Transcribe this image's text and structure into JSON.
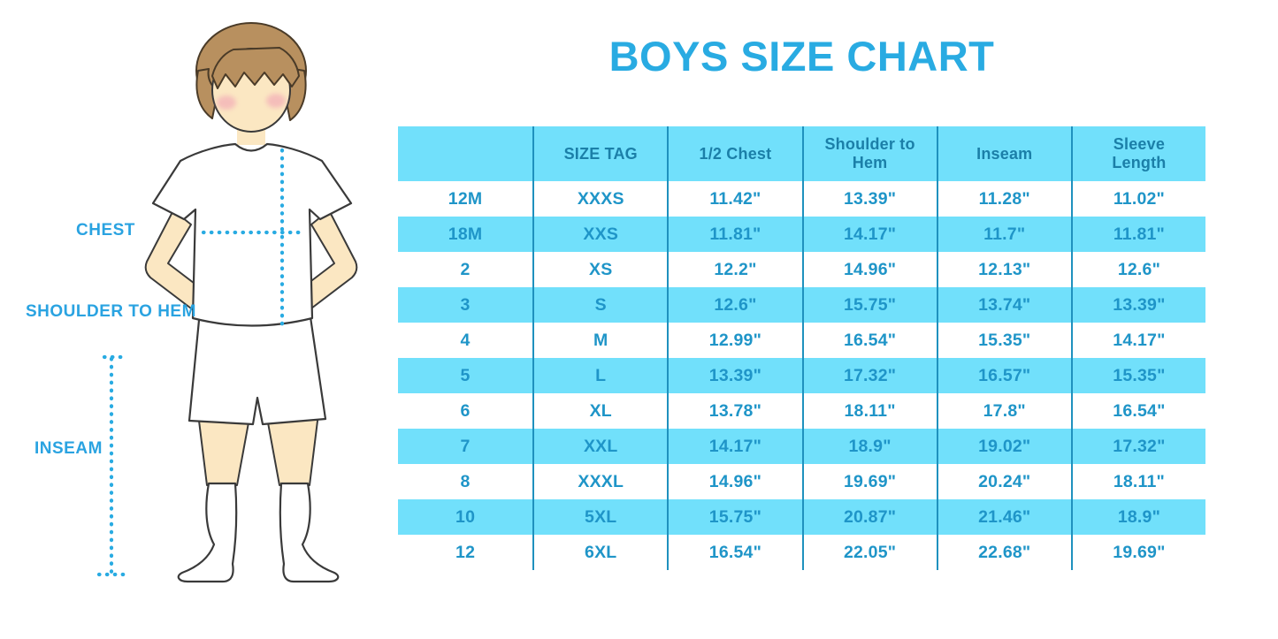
{
  "title": "BOYS SIZE CHART",
  "figure": {
    "illustration": "boy-in-white-tshirt-shorts-and-knee-socks",
    "labels": {
      "chest": "CHEST",
      "shoulder_to_hem": "SHOULDER TO HEM",
      "inseam": "INSEAM"
    }
  },
  "table": {
    "headers": [
      "",
      "SIZE TAG",
      "1/2 Chest",
      "Shoulder to Hem",
      "Inseam",
      "Sleeve Length"
    ],
    "rows": [
      [
        "12M",
        "XXXS",
        "11.42\"",
        "13.39\"",
        "11.28\"",
        "11.02\""
      ],
      [
        "18M",
        "XXS",
        "11.81\"",
        "14.17\"",
        "11.7\"",
        "11.81\""
      ],
      [
        "2",
        "XS",
        "12.2\"",
        "14.96\"",
        "12.13\"",
        "12.6\""
      ],
      [
        "3",
        "S",
        "12.6\"",
        "15.75\"",
        "13.74\"",
        "13.39\""
      ],
      [
        "4",
        "M",
        "12.99\"",
        "16.54\"",
        "15.35\"",
        "14.17\""
      ],
      [
        "5",
        "L",
        "13.39\"",
        "17.32\"",
        "16.57\"",
        "15.35\""
      ],
      [
        "6",
        "XL",
        "13.78\"",
        "18.11\"",
        "17.8\"",
        "16.54\""
      ],
      [
        "7",
        "XXL",
        "14.17\"",
        "18.9\"",
        "19.02\"",
        "17.32\""
      ],
      [
        "8",
        "XXXL",
        "14.96\"",
        "19.69\"",
        "20.24\"",
        "18.11\""
      ],
      [
        "10",
        "5XL",
        "15.75\"",
        "20.87\"",
        "21.46\"",
        "18.9\""
      ],
      [
        "12",
        "6XL",
        "16.54\"",
        "22.05\"",
        "22.68\"",
        "19.69\""
      ]
    ]
  },
  "colors": {
    "title_blue": "#29ABE2",
    "label_blue": "#2AA3E1",
    "dotted_line": "#29ABE2",
    "table_fill_cyan": "#71E0FB",
    "table_divider": "#1F91BE",
    "header_text": "#1B7FA8",
    "cell_text": "#1F95C8",
    "skin": "#FBE7C2",
    "hair": "#B8905F",
    "blush": "#F1A3B5",
    "outline": "#3A3A3A"
  }
}
